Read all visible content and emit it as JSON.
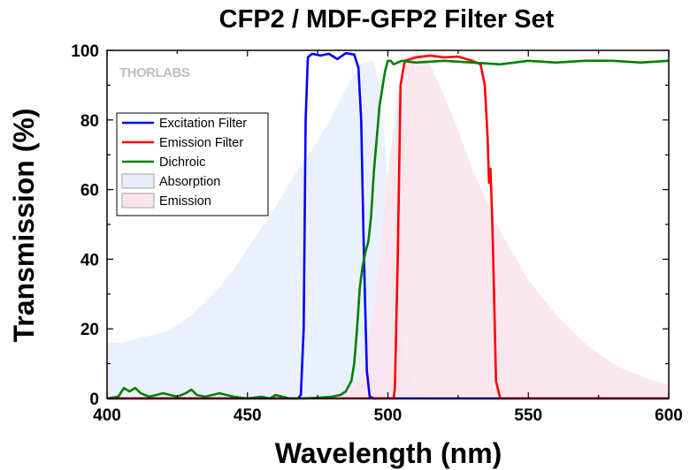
{
  "chart_data": {
    "type": "line",
    "title": "CFP2 / MDF-GFP2 Filter Set",
    "xlabel": "Wavelength (nm)",
    "ylabel": "Transmission (%)",
    "xlim": [
      400,
      600
    ],
    "ylim": [
      0,
      100
    ],
    "x_ticks": [
      400,
      450,
      500,
      550,
      600
    ],
    "y_ticks": [
      0,
      20,
      40,
      60,
      80,
      100
    ],
    "grid": false,
    "legend_position": "upper-left",
    "watermark": "THORLABS",
    "series": [
      {
        "name": "Absorption",
        "kind": "area",
        "color": "#e8eefb",
        "x": [
          400,
          405,
          410,
          415,
          420,
          425,
          430,
          435,
          440,
          445,
          450,
          455,
          460,
          465,
          470,
          475,
          480,
          485,
          490,
          495,
          497,
          499,
          501,
          503,
          505,
          507,
          509,
          512,
          515,
          520
        ],
        "y": [
          16,
          16,
          17,
          18,
          19,
          21,
          24,
          28,
          32,
          37,
          43,
          49,
          55,
          62,
          68,
          74,
          81,
          89,
          96,
          97,
          90,
          73,
          50,
          30,
          17,
          9,
          4,
          1,
          0.5,
          0
        ]
      },
      {
        "name": "Emission",
        "kind": "area",
        "color": "#fbe3ec",
        "x": [
          480,
          485,
          490,
          495,
          500,
          505,
          510,
          515,
          520,
          525,
          530,
          535,
          540,
          545,
          550,
          555,
          560,
          565,
          570,
          575,
          580,
          585,
          590,
          595,
          600
        ],
        "y": [
          0,
          1.5,
          5,
          25,
          65,
          95,
          100,
          96,
          87,
          77,
          66,
          57,
          48,
          41,
          34,
          29,
          24,
          20,
          16,
          13,
          10,
          8,
          6.5,
          5,
          4
        ]
      },
      {
        "name": "Excitation Filter",
        "kind": "line",
        "color": "#0000ff",
        "x": [
          400,
          468,
          469,
          470,
          470.7,
          471.5,
          473,
          476,
          479,
          482,
          485,
          488,
          489.5,
          490.5,
          491.5,
          492.5,
          493.5,
          495,
          600
        ],
        "y": [
          0,
          0,
          1,
          20,
          80,
          98,
          99,
          98.5,
          99,
          97.5,
          99.2,
          98.8,
          95,
          80,
          40,
          8,
          0.5,
          0,
          0
        ]
      },
      {
        "name": "Emission Filter",
        "kind": "line",
        "color": "#ff0000",
        "x": [
          400,
          502,
          502.5,
          503.5,
          504.5,
          506,
          510,
          515,
          520,
          525,
          530,
          533,
          534.5,
          535.5,
          536,
          536.5,
          537,
          537.5,
          538.5,
          540,
          600
        ],
        "y": [
          0,
          0,
          3,
          40,
          90,
          97,
          98,
          98.5,
          98,
          98.2,
          97,
          96,
          90,
          75,
          62,
          66,
          55,
          40,
          5,
          0,
          0
        ]
      },
      {
        "name": "Dichroic",
        "kind": "line",
        "color": "#008000",
        "x": [
          400,
          404,
          406,
          408,
          410,
          412,
          415,
          420,
          425,
          428,
          430,
          432,
          435,
          440,
          445,
          450,
          455,
          458,
          460,
          465,
          470,
          475,
          480,
          483,
          485,
          487,
          488,
          489,
          490,
          491,
          492,
          493,
          494,
          495,
          497,
          499,
          500,
          501,
          502,
          505,
          510,
          520,
          530,
          540,
          550,
          560,
          570,
          580,
          590,
          600
        ],
        "y": [
          0,
          0.5,
          3,
          2,
          3,
          1.5,
          0.5,
          1.5,
          0.5,
          1.5,
          2.5,
          1,
          0.5,
          1.5,
          0.5,
          0,
          0.5,
          0,
          1,
          0,
          0,
          0.2,
          0.5,
          1,
          2,
          5,
          10,
          20,
          32,
          38,
          42,
          45,
          52,
          65,
          84,
          94,
          97,
          97,
          96,
          97,
          96.5,
          97,
          96.5,
          96,
          97,
          96.5,
          97,
          97,
          96.5,
          97
        ]
      }
    ]
  }
}
